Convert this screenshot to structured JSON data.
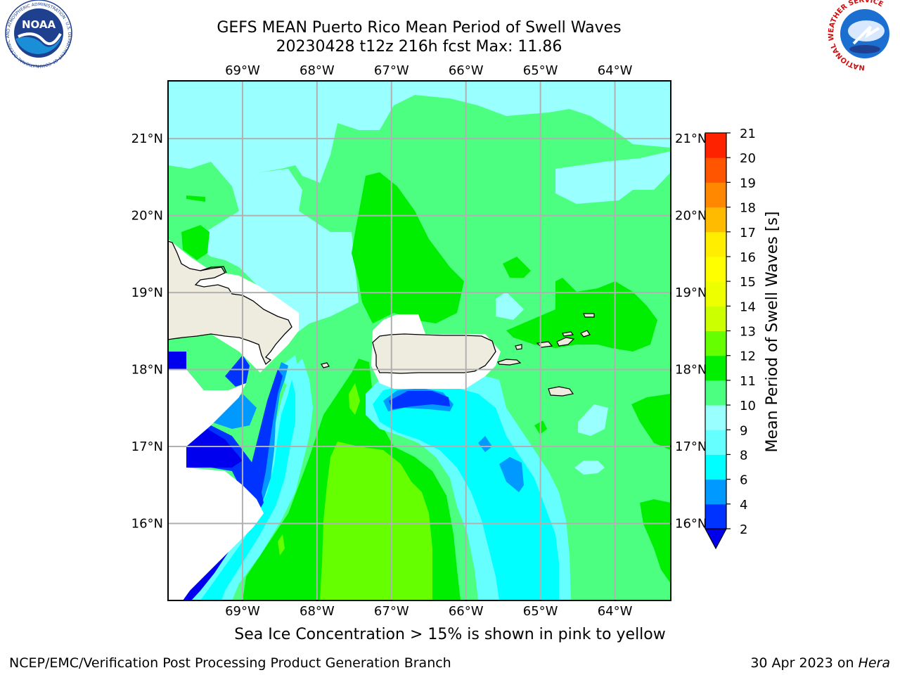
{
  "title": {
    "line1": "GEFS MEAN Puerto Rico Mean Period of Swell Waves",
    "line2": "20230428 t12z 216h fcst   Max: 11.86"
  },
  "map": {
    "lon_labels": [
      "69°W",
      "68°W",
      "67°W",
      "66°W",
      "65°W",
      "64°W"
    ],
    "lon_values": [
      -69,
      -68,
      -67,
      -66,
      -65,
      -64
    ],
    "lat_labels": [
      "21°N",
      "20°N",
      "19°N",
      "18°N",
      "17°N",
      "16°N"
    ],
    "lat_values": [
      21,
      20,
      19,
      18,
      17,
      16
    ],
    "lon_range": [
      -70,
      -63.25
    ],
    "lat_range": [
      15,
      21.75
    ],
    "colors": {
      "land": "#eeecdf",
      "gridline": "#b0b0b0",
      "coast": "#000000"
    }
  },
  "colorbar": {
    "label": "Mean Period of Swell Waves [s]",
    "ticks": [
      "2",
      "4",
      "6",
      "8",
      "9",
      "10",
      "11",
      "12",
      "13",
      "14",
      "15",
      "16",
      "17",
      "18",
      "19",
      "20",
      "21"
    ],
    "bands": [
      {
        "from": 2,
        "to": 4,
        "color": "#0033ff"
      },
      {
        "from": 4,
        "to": 6,
        "color": "#0099ff"
      },
      {
        "from": 6,
        "to": 8,
        "color": "#00ffff"
      },
      {
        "from": 8,
        "to": 9,
        "color": "#66ffff"
      },
      {
        "from": 9,
        "to": 10,
        "color": "#99ffff"
      },
      {
        "from": 10,
        "to": 11,
        "color": "#4dff80"
      },
      {
        "from": 11,
        "to": 12,
        "color": "#00ee00"
      },
      {
        "from": 12,
        "to": 13,
        "color": "#66ff00"
      },
      {
        "from": 13,
        "to": 14,
        "color": "#ccff00"
      },
      {
        "from": 14,
        "to": 15,
        "color": "#eeff00"
      },
      {
        "from": 15,
        "to": 16,
        "color": "#ffff00"
      },
      {
        "from": 16,
        "to": 17,
        "color": "#ffee00"
      },
      {
        "from": 17,
        "to": 18,
        "color": "#ffbb00"
      },
      {
        "from": 18,
        "to": 19,
        "color": "#ff8800"
      },
      {
        "from": 19,
        "to": 20,
        "color": "#ff5500"
      },
      {
        "from": 20,
        "to": 21,
        "color": "#ff2200"
      }
    ],
    "under_color": "#0000ee"
  },
  "logos": {
    "noaa_text": "NOAA",
    "noaa_ring_text": "NATIONAL OCEANIC AND ATMOSPHERIC ADMINISTRATION · U.S. DEPARTMENT OF COMMERCE",
    "nws_ring_text": "NATIONAL WEATHER SERVICE"
  },
  "footer": {
    "sea_ice_note": "Sea Ice Concentration > 15% is shown in pink to yellow",
    "credit_left": "NCEP/EMC/Verification Post Processing Product Generation Branch",
    "credit_date": "30 Apr 2023 on ",
    "credit_machine": "Hera"
  }
}
